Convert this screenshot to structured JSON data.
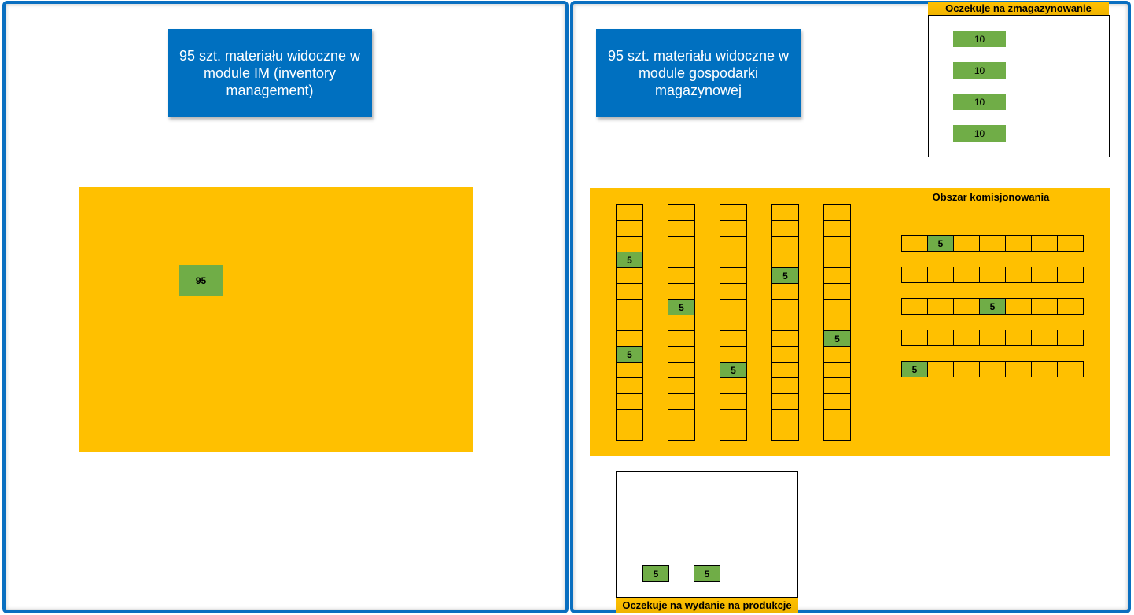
{
  "left": {
    "title": "95 szt. materiału widoczne w module IM (inventory management)",
    "stock": "95"
  },
  "right": {
    "title": "95 szt. materiału widoczne w module gospodarki magazynowej",
    "inbound": {
      "label": "Oczekuje na zmagazynowanie",
      "items": [
        "10",
        "10",
        "10",
        "10"
      ]
    },
    "picking_area_label": "Obszar komisjonowania",
    "vertical_racks": [
      {
        "cells": 15,
        "filled": {
          "3": "5",
          "9": "5"
        }
      },
      {
        "cells": 15,
        "filled": {
          "6": "5"
        }
      },
      {
        "cells": 15,
        "filled": {
          "10": "5"
        }
      },
      {
        "cells": 15,
        "filled": {
          "4": "5"
        }
      },
      {
        "cells": 15,
        "filled": {
          "8": "5"
        }
      }
    ],
    "horizontal_racks": [
      {
        "cells": 7,
        "filled": {
          "1": "5"
        }
      },
      {
        "cells": 7,
        "filled": {}
      },
      {
        "cells": 7,
        "filled": {
          "3": "5"
        }
      },
      {
        "cells": 7,
        "filled": {}
      },
      {
        "cells": 7,
        "filled": {
          "0": "5"
        }
      }
    ],
    "outbound": {
      "label": "Oczekuje na wydanie na produkcje",
      "items": [
        "5",
        "5"
      ]
    }
  },
  "colors": {
    "blue": "#0070c0",
    "yellow": "#ffc000",
    "green": "#70ad47"
  }
}
